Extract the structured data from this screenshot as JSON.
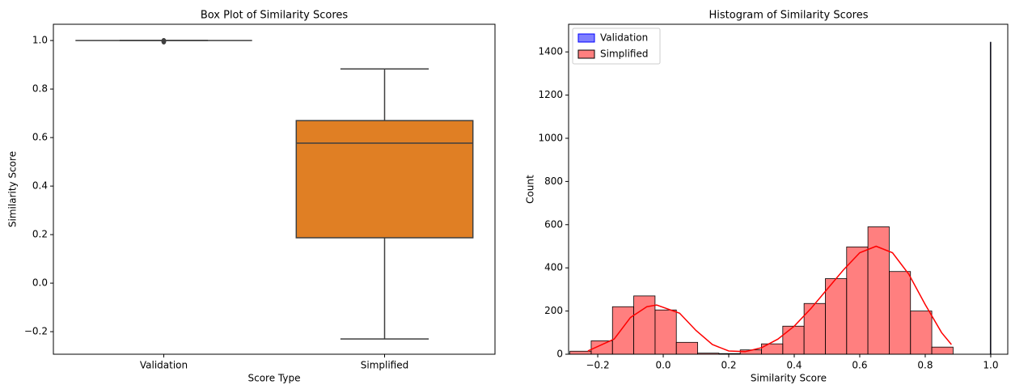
{
  "chart_data": [
    {
      "type": "box",
      "title": "Box Plot of Similarity Scores",
      "x_label": "Score Type",
      "y_label": "Similarity Score",
      "categories": [
        "Validation",
        "Simplified"
      ],
      "boxes": [
        {
          "min": 1.0,
          "q1": 1.0,
          "median": 1.0,
          "q3": 1.0,
          "max": 1.0,
          "outliers": [
            0.997
          ],
          "color": "#3274a1"
        },
        {
          "min": -0.23,
          "q1": 0.187,
          "median": 0.577,
          "q3": 0.67,
          "max": 0.883,
          "outliers": [],
          "color": "#e07f24"
        }
      ],
      "ylim": [
        -0.293,
        1.067
      ],
      "yticks": [
        {
          "value": -0.2,
          "label": "−0.2"
        },
        {
          "value": 0,
          "label": "0.0"
        },
        0.2,
        0.4,
        0.6,
        0.8,
        {
          "value": 1,
          "label": "1.0"
        }
      ]
    },
    {
      "type": "histogram",
      "title": "Histogram of Similarity Scores",
      "x_label": "Similarity Score",
      "y_label": "Count",
      "series": [
        {
          "name": "Validation",
          "color": "#0000ff",
          "bins": [
            0.9985,
            1.0005
          ],
          "values": [
            1445
          ]
        },
        {
          "name": "Simplified",
          "color": "#ff0000",
          "bins": [
            -0.285,
            -0.22,
            -0.155,
            -0.09,
            -0.025,
            0.04,
            0.105,
            0.17,
            0.235,
            0.3,
            0.365,
            0.43,
            0.495,
            0.56,
            0.625,
            0.69,
            0.755,
            0.82,
            0.885
          ],
          "values": [
            14,
            62,
            220,
            270,
            205,
            55,
            5,
            3,
            20,
            48,
            130,
            235,
            350,
            497,
            590,
            383,
            200,
            33
          ]
        }
      ],
      "kde": {
        "color": "#ff0000",
        "x": [
          -0.23,
          -0.15,
          -0.1,
          -0.05,
          -0.02,
          0.05,
          0.1,
          0.15,
          0.2,
          0.25,
          0.3,
          0.35,
          0.4,
          0.45,
          0.5,
          0.55,
          0.6,
          0.65,
          0.7,
          0.75,
          0.8,
          0.85,
          0.88
        ],
        "values": [
          15,
          70,
          170,
          220,
          228,
          190,
          110,
          45,
          15,
          12,
          30,
          70,
          130,
          210,
          300,
          390,
          470,
          500,
          470,
          370,
          230,
          100,
          45
        ]
      },
      "xlim": [
        -0.289,
        1.052
      ],
      "ylim": [
        0,
        1528
      ],
      "xticks": [
        {
          "value": -0.2,
          "label": "−0.2"
        },
        {
          "value": 0,
          "label": "0.0"
        },
        0.2,
        0.4,
        0.6,
        0.8,
        {
          "value": 1,
          "label": "1.0"
        }
      ],
      "yticks": [
        0,
        200,
        400,
        600,
        800,
        1000,
        1200,
        1400
      ],
      "legend": "upper left"
    }
  ]
}
